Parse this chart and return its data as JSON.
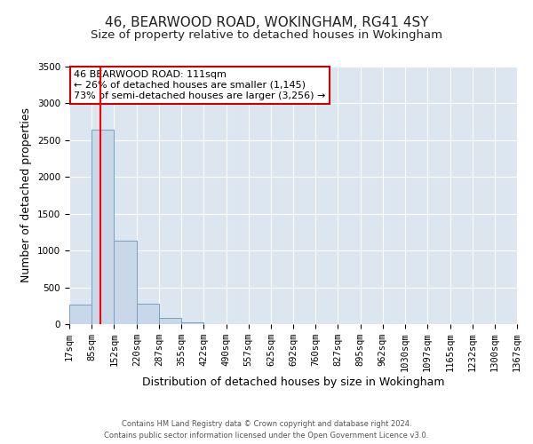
{
  "title": "46, BEARWOOD ROAD, WOKINGHAM, RG41 4SY",
  "subtitle": "Size of property relative to detached houses in Wokingham",
  "xlabel": "Distribution of detached houses by size in Wokingham",
  "ylabel": "Number of detached properties",
  "bin_edges": [
    17,
    85,
    152,
    220,
    287,
    355,
    422,
    490,
    557,
    625,
    692,
    760,
    827,
    895,
    962,
    1030,
    1097,
    1165,
    1232,
    1300,
    1367
  ],
  "bin_labels": [
    "17sqm",
    "85sqm",
    "152sqm",
    "220sqm",
    "287sqm",
    "355sqm",
    "422sqm",
    "490sqm",
    "557sqm",
    "625sqm",
    "692sqm",
    "760sqm",
    "827sqm",
    "895sqm",
    "962sqm",
    "1030sqm",
    "1097sqm",
    "1165sqm",
    "1232sqm",
    "1300sqm",
    "1367sqm"
  ],
  "bar_heights": [
    270,
    2640,
    1140,
    280,
    80,
    30,
    5,
    0,
    0,
    0,
    0,
    0,
    0,
    0,
    0,
    0,
    0,
    0,
    0,
    0
  ],
  "bar_color": "#c8d8e8",
  "bar_edge_color": "#7aa0c0",
  "red_line_x": 111,
  "ylim": [
    0,
    3500
  ],
  "yticks": [
    0,
    500,
    1000,
    1500,
    2000,
    2500,
    3000,
    3500
  ],
  "annotation_title": "46 BEARWOOD ROAD: 111sqm",
  "annotation_line1": "← 26% of detached houses are smaller (1,145)",
  "annotation_line2": "73% of semi-detached houses are larger (3,256) →",
  "annotation_box_color": "#ffffff",
  "annotation_box_edge": "#cc0000",
  "footer_line1": "Contains HM Land Registry data © Crown copyright and database right 2024.",
  "footer_line2": "Contains public sector information licensed under the Open Government Licence v3.0.",
  "background_color": "#dce6f0",
  "title_fontsize": 11,
  "subtitle_fontsize": 9.5,
  "axis_label_fontsize": 9,
  "tick_fontsize": 7.5,
  "annotation_fontsize": 8
}
